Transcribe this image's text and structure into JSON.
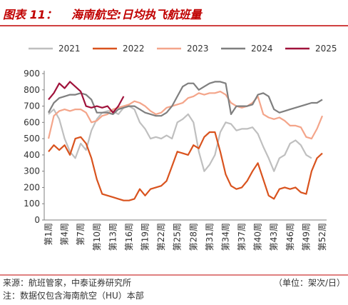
{
  "chart_data": {
    "type": "line",
    "figure_label": "图表 11：",
    "title": "海南航空:日均执飞航班量",
    "categories": [
      "第1周",
      null,
      null,
      "第4周",
      null,
      null,
      "第7周",
      null,
      null,
      "第10周",
      null,
      null,
      "第13周",
      null,
      null,
      "第16周",
      null,
      null,
      "第19周",
      null,
      null,
      "第22周",
      null,
      null,
      "第25周",
      null,
      null,
      "第28周",
      null,
      null,
      "第31周",
      null,
      null,
      "第34周",
      null,
      null,
      "第37周",
      null,
      null,
      "第40周",
      null,
      null,
      "第43周",
      null,
      null,
      "第46周",
      null,
      null,
      "第49周",
      null,
      null,
      "第52周"
    ],
    "series": [
      {
        "name": "2021",
        "color": "#bfbfbf",
        "values": [
          650,
          680,
          620,
          500,
          420,
          380,
          470,
          430,
          550,
          620,
          660,
          670,
          670,
          650,
          690,
          700,
          680,
          600,
          560,
          500,
          510,
          500,
          520,
          500,
          600,
          620,
          650,
          600,
          420,
          300,
          340,
          400,
          540,
          600,
          590,
          550,
          560,
          560,
          570,
          530,
          450,
          380,
          300,
          380,
          400,
          470,
          490,
          460,
          400,
          380,
          null,
          null
        ]
      },
      {
        "name": "2022",
        "color": "#d9531e",
        "values": [
          420,
          460,
          430,
          460,
          400,
          500,
          510,
          470,
          380,
          250,
          160,
          150,
          140,
          130,
          120,
          120,
          130,
          190,
          150,
          190,
          200,
          210,
          240,
          330,
          420,
          410,
          400,
          460,
          440,
          510,
          540,
          540,
          420,
          280,
          210,
          190,
          200,
          240,
          300,
          350,
          250,
          150,
          130,
          190,
          200,
          190,
          200,
          170,
          160,
          300,
          380,
          410
        ]
      },
      {
        "name": "2023",
        "color": "#f4a58a",
        "values": [
          500,
          640,
          670,
          680,
          670,
          680,
          680,
          660,
          600,
          610,
          640,
          650,
          680,
          690,
          700,
          710,
          730,
          720,
          700,
          670,
          650,
          660,
          690,
          700,
          710,
          720,
          750,
          760,
          780,
          770,
          780,
          780,
          790,
          770,
          720,
          700,
          690,
          700,
          720,
          760,
          650,
          630,
          620,
          630,
          610,
          580,
          580,
          570,
          510,
          500,
          560,
          640
        ]
      },
      {
        "name": "2024",
        "color": "#7f7f7f",
        "values": [
          660,
          720,
          750,
          760,
          770,
          770,
          780,
          770,
          740,
          660,
          660,
          660,
          650,
          680,
          690,
          700,
          700,
          680,
          660,
          650,
          640,
          640,
          660,
          700,
          760,
          820,
          840,
          840,
          800,
          820,
          840,
          850,
          850,
          840,
          650,
          700,
          700,
          700,
          710,
          770,
          780,
          760,
          680,
          660,
          670,
          680,
          690,
          700,
          710,
          720,
          720,
          740
        ]
      },
      {
        "name": "2025",
        "color": "#a0123b",
        "values": [
          740,
          780,
          840,
          810,
          850,
          820,
          790,
          700,
          690,
          700,
          690,
          700,
          660,
          700,
          760,
          null,
          null,
          null,
          null,
          null,
          null,
          null,
          null,
          null,
          null,
          null,
          null,
          null,
          null,
          null,
          null,
          null,
          null,
          null,
          null,
          null,
          null,
          null,
          null,
          null,
          null,
          null,
          null,
          null,
          null,
          null,
          null,
          null,
          null,
          null,
          null,
          null
        ]
      }
    ],
    "ylim": [
      0,
      900
    ],
    "yticks": [
      0,
      100,
      200,
      300,
      400,
      500,
      600,
      700,
      800,
      900
    ],
    "grid": false,
    "source": "来源：航班管家，中泰证券研究所",
    "unit": "（单位：架次/日）",
    "note": "注：数据仅包含海南航空（HU）本部"
  }
}
